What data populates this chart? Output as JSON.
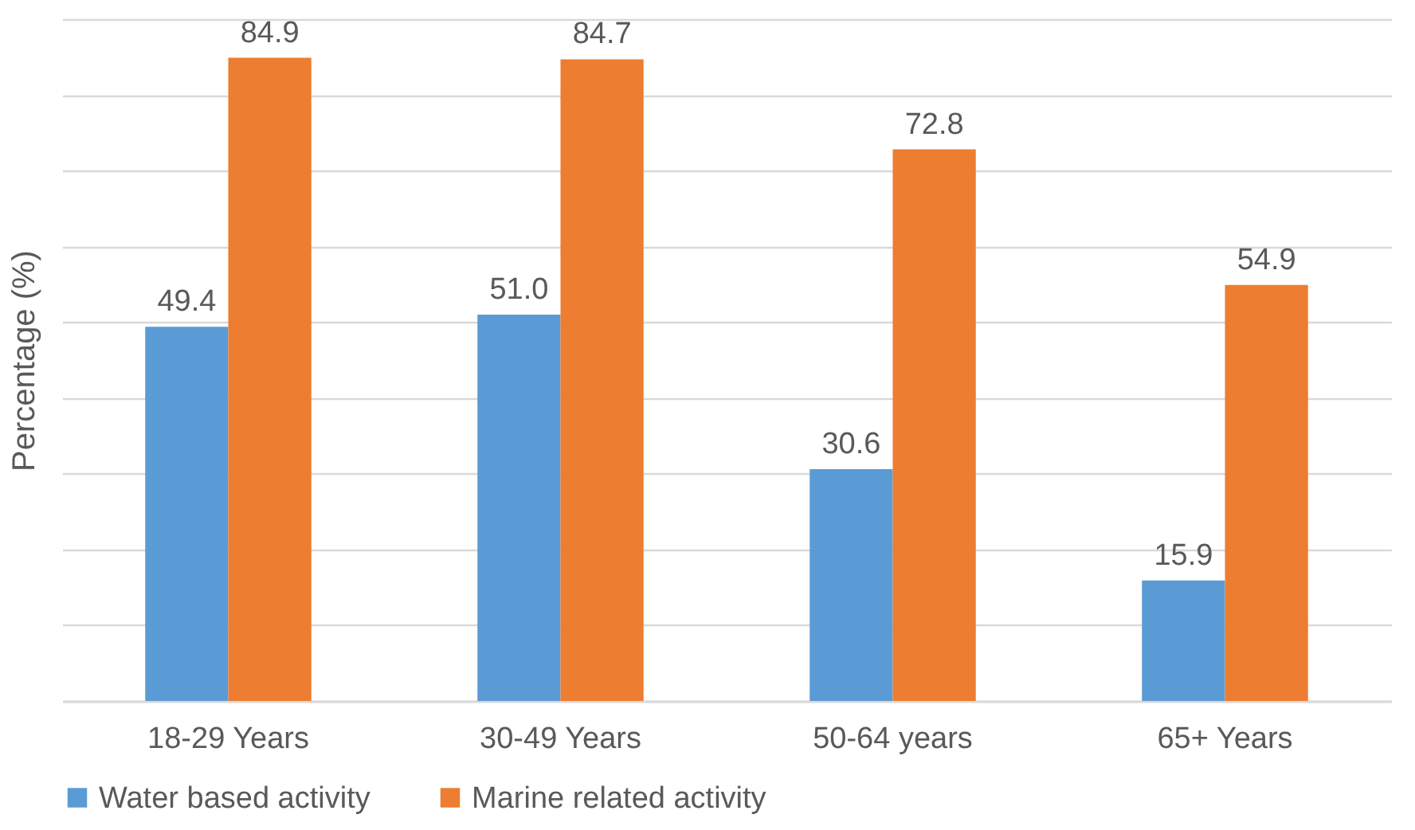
{
  "chart_data": {
    "type": "bar",
    "ylabel": "Percentage (%)",
    "categories": [
      "18-29 Years",
      "30-49 Years",
      "50-64 years",
      "65+ Years"
    ],
    "series": [
      {
        "name": "Water based activity",
        "color": "#5b9bd5",
        "values": [
          49.4,
          51.0,
          30.6,
          15.9
        ],
        "value_labels": [
          "49.4",
          "51.0",
          "30.6",
          "15.9"
        ]
      },
      {
        "name": "Marine related activity",
        "color": "#ed7d31",
        "values": [
          84.9,
          84.7,
          72.8,
          54.9
        ],
        "value_labels": [
          "84.9",
          "84.7",
          "72.8",
          "54.9"
        ]
      }
    ],
    "grid": "y",
    "legend": "bottom",
    "tick_labels": "x"
  }
}
